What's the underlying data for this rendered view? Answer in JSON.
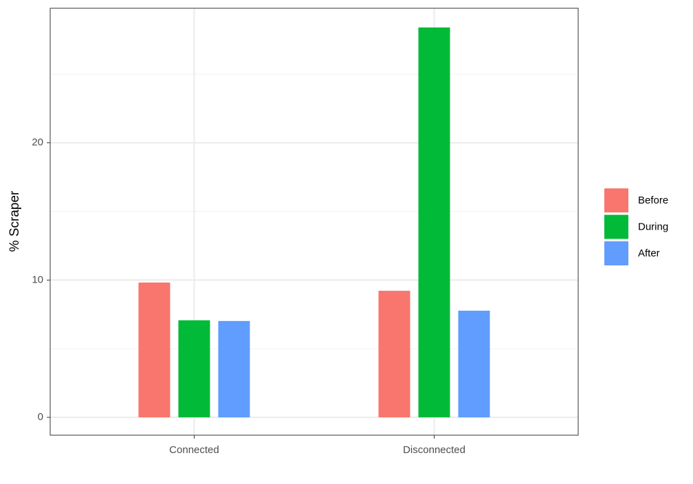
{
  "chart_data": {
    "type": "bar",
    "y_label": "% Scraper",
    "categories": [
      "Connected",
      "Disconnected"
    ],
    "series": [
      {
        "name": "Before",
        "color": "#F8766D",
        "values": [
          9.82,
          9.22
        ]
      },
      {
        "name": "During",
        "color": "#00BA38",
        "values": [
          7.07,
          28.4
        ]
      },
      {
        "name": "After",
        "color": "#619CFF",
        "values": [
          7.02,
          7.77
        ]
      }
    ],
    "ylim": [
      -1.3,
      29.8
    ],
    "yticks": [
      0,
      10,
      20
    ],
    "minor_grid": [
      5,
      15,
      25
    ],
    "grid": true,
    "legend": "right"
  }
}
